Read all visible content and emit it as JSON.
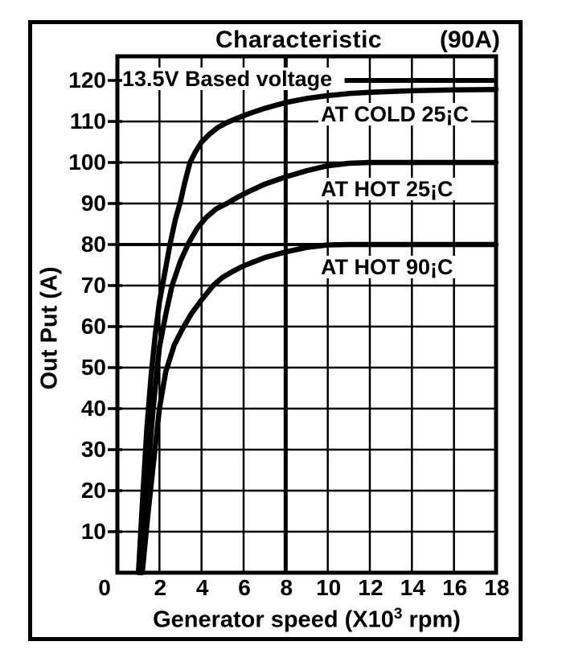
{
  "figure": {
    "title": "Characteristic",
    "rating": "(90A)"
  },
  "chart_data": {
    "type": "line",
    "title": "Characteristic",
    "rating": "(90A)",
    "xlabel": "Generator speed (X10³ rpm)",
    "ylabel": "Out Put (A)",
    "xlim": [
      0,
      18
    ],
    "ylim": [
      0,
      126
    ],
    "x_ticks": [
      0,
      2,
      4,
      6,
      8,
      10,
      12,
      14,
      16,
      18
    ],
    "y_ticks": [
      10,
      20,
      30,
      40,
      50,
      60,
      70,
      80,
      90,
      100,
      110,
      120
    ],
    "grid": "on",
    "legend_position": "inline-labels",
    "ink_color": "#000000",
    "paper_color": "#ffffff",
    "annotation": {
      "text": "13.5V Based voltage",
      "level_amps": 120,
      "line_from_x": 10.8,
      "line_to_x": 18
    },
    "series": [
      {
        "name": "AT COLD 25¡C",
        "saturation_amps": 117.5,
        "points": [
          [
            1.0,
            0
          ],
          [
            1.2,
            18
          ],
          [
            1.4,
            35
          ],
          [
            1.6,
            48
          ],
          [
            1.8,
            58
          ],
          [
            2.0,
            66
          ],
          [
            2.25,
            73
          ],
          [
            2.5,
            80
          ],
          [
            2.75,
            86
          ],
          [
            3.0,
            90.5
          ],
          [
            3.2,
            95
          ],
          [
            3.45,
            100
          ],
          [
            3.7,
            102.5
          ],
          [
            4.0,
            105
          ],
          [
            4.4,
            107
          ],
          [
            4.8,
            108.6
          ],
          [
            5.2,
            109.7
          ],
          [
            5.7,
            110.8
          ],
          [
            6.2,
            111.8
          ],
          [
            7.0,
            113.2
          ],
          [
            8.0,
            114.6
          ],
          [
            9.0,
            115.6
          ],
          [
            10.0,
            116.3
          ],
          [
            11.0,
            116.8
          ],
          [
            12.0,
            117.1
          ],
          [
            14.0,
            117.5
          ],
          [
            16.0,
            117.7
          ],
          [
            18.0,
            117.8
          ]
        ]
      },
      {
        "name": "AT HOT 25¡C",
        "saturation_amps": 100,
        "points": [
          [
            1.08,
            0
          ],
          [
            1.3,
            15
          ],
          [
            1.5,
            28
          ],
          [
            1.7,
            40
          ],
          [
            2.0,
            55
          ],
          [
            2.3,
            63
          ],
          [
            2.6,
            70
          ],
          [
            3.0,
            76
          ],
          [
            3.4,
            80.5
          ],
          [
            3.8,
            84
          ],
          [
            4.2,
            86.5
          ],
          [
            4.7,
            88.7
          ],
          [
            5.2,
            90
          ],
          [
            5.7,
            91.5
          ],
          [
            6.2,
            92.8
          ],
          [
            7.0,
            94.7
          ],
          [
            8.0,
            96.5
          ],
          [
            9.0,
            98
          ],
          [
            10.0,
            99.2
          ],
          [
            11.0,
            99.8
          ],
          [
            12.0,
            100
          ],
          [
            14.0,
            100
          ],
          [
            16.0,
            100
          ],
          [
            18.0,
            100
          ]
        ]
      },
      {
        "name": "AT HOT 90¡C",
        "saturation_amps": 80,
        "points": [
          [
            1.18,
            0
          ],
          [
            1.45,
            14
          ],
          [
            1.7,
            26
          ],
          [
            2.0,
            40
          ],
          [
            2.3,
            49
          ],
          [
            2.7,
            55.5
          ],
          [
            3.1,
            59.5
          ],
          [
            3.5,
            63
          ],
          [
            4.0,
            66.5
          ],
          [
            4.55,
            70
          ],
          [
            5.0,
            72
          ],
          [
            5.5,
            73.5
          ],
          [
            6.0,
            74.8
          ],
          [
            7.0,
            76.8
          ],
          [
            8.0,
            78.2
          ],
          [
            9.0,
            79.3
          ],
          [
            10.0,
            79.9
          ],
          [
            11.0,
            80
          ],
          [
            12.0,
            80
          ],
          [
            14.0,
            80
          ],
          [
            16.0,
            80
          ],
          [
            18.0,
            80
          ]
        ]
      }
    ]
  }
}
